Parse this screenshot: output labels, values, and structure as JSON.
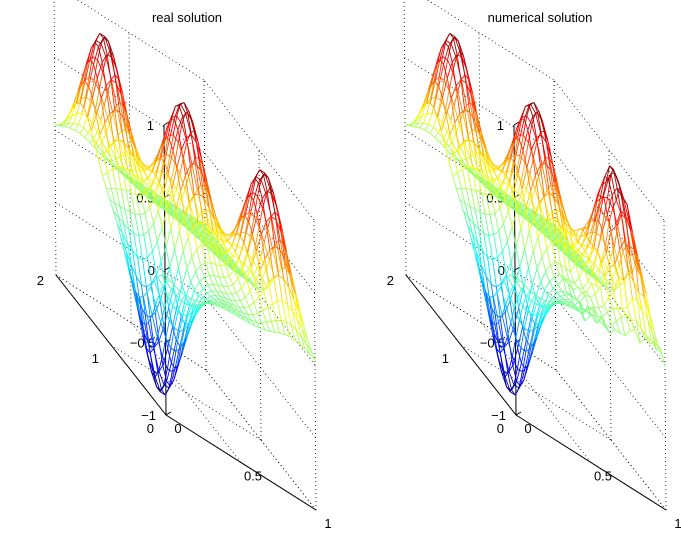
{
  "chart_data": [
    {
      "type": "surface",
      "title": "real solution",
      "xlim": [
        0,
        1
      ],
      "ylim": [
        0,
        2
      ],
      "zlim": [
        -1,
        1
      ],
      "x_ticks": [
        "0",
        "0.5",
        "1"
      ],
      "y_ticks": [
        "0",
        "1",
        "2"
      ],
      "z_ticks": [
        "−1",
        "−0.5",
        "0",
        "0.5",
        "1"
      ],
      "colormap": "jet",
      "grid": true,
      "peaks": [
        {
          "x": 0.15,
          "y": 1.5,
          "z": 1
        },
        {
          "x": 0.5,
          "y": 1.0,
          "z": 1
        },
        {
          "x": 0.85,
          "y": 0.5,
          "z": 1
        },
        {
          "x": 0.15,
          "y": 0.5,
          "z": -1
        }
      ]
    },
    {
      "type": "surface",
      "title": "numerical solution",
      "xlim": [
        0,
        1
      ],
      "ylim": [
        0,
        2
      ],
      "zlim": [
        -1,
        1
      ],
      "x_ticks": [
        "0",
        "0.5",
        "1"
      ],
      "y_ticks": [
        "0",
        "1",
        "2"
      ],
      "z_ticks": [
        "−1",
        "−0.5",
        "0",
        "0.5",
        "1"
      ],
      "colormap": "jet",
      "grid": true,
      "peaks": [
        {
          "x": 0.15,
          "y": 1.5,
          "z": 1
        },
        {
          "x": 0.5,
          "y": 1.0,
          "z": 1
        },
        {
          "x": 0.85,
          "y": 0.5,
          "z": 1
        },
        {
          "x": 0.15,
          "y": 0.5,
          "z": -1
        }
      ]
    }
  ]
}
